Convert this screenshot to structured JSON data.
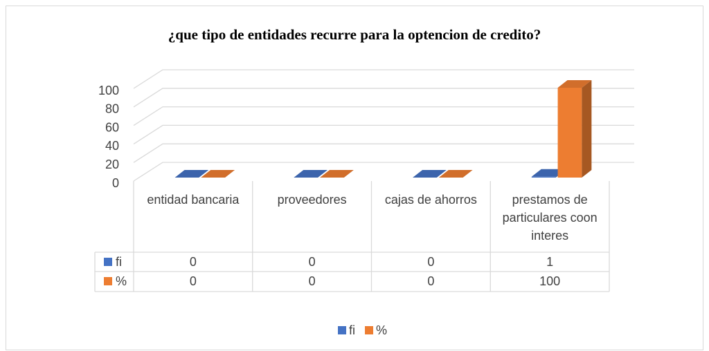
{
  "chart_data": {
    "type": "bar3d",
    "title": "¿que tipo de entidades recurre para la optencion de credito?",
    "categories": [
      "entidad bancaria",
      "proveedores",
      "cajas de ahorros",
      "prestamos de particulares coon interes"
    ],
    "series": [
      {
        "name": "fi",
        "color": "#4472c4",
        "values": [
          0,
          0,
          0,
          1
        ]
      },
      {
        "name": "%",
        "color": "#ed7d31",
        "values": [
          0,
          0,
          0,
          100
        ]
      }
    ],
    "ylim": [
      0,
      100
    ],
    "yticks": [
      0,
      20,
      40,
      60,
      80,
      100
    ],
    "grid": true,
    "legend": "bottom",
    "data_table": true
  }
}
